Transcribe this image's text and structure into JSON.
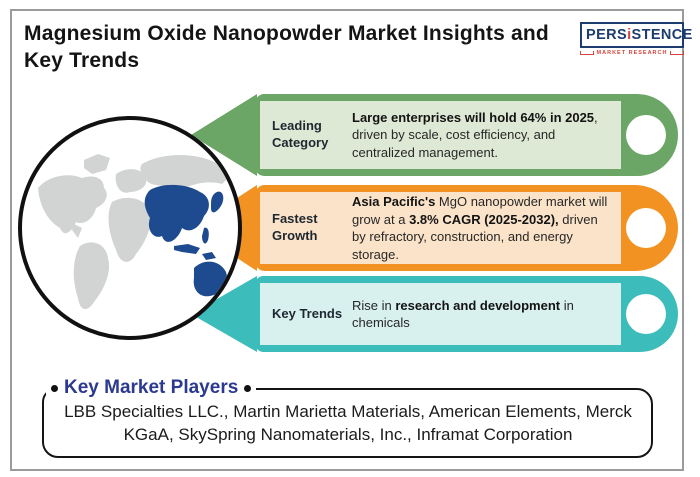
{
  "page": {
    "title": "Magnesium Oxide Nanopowder Market Insights and Key Trends"
  },
  "logo": {
    "part1": "PERS",
    "part2": "i",
    "part3": "STENCE",
    "subtitle": "MARKET RESEARCH",
    "navy": "#1d3d6f",
    "red": "#d6453d"
  },
  "map": {
    "land_color": "#d2d3d3",
    "highlight_color": "#1e4b8f",
    "highlight_region": "asia-pacific"
  },
  "banners": [
    {
      "label": "Leading Category",
      "color": "#6ba666",
      "light": "#dde9d5",
      "segments": [
        {
          "text": "Large enterprises will hold 64% in 2025",
          "bold": true
        },
        {
          "text": ", driven by scale, cost efficiency, and centralized management.",
          "bold": false
        }
      ]
    },
    {
      "label": "Fastest Growth",
      "color": "#f19222",
      "light": "#fbe3c9",
      "segments": [
        {
          "text": "Asia Pacific's",
          "bold": true
        },
        {
          "text": " MgO nanopowder market will grow at a ",
          "bold": false
        },
        {
          "text": "3.8% CAGR (2025-2032),",
          "bold": true
        },
        {
          "text": " driven by refractory, construction, and energy storage.",
          "bold": false
        }
      ]
    },
    {
      "label": "Key Trends",
      "color": "#3cbcba",
      "light": "#d8f0ee",
      "segments": [
        {
          "text": "Rise in ",
          "bold": false
        },
        {
          "text": "research and development",
          "bold": true
        },
        {
          "text": " in chemicals",
          "bold": false
        }
      ]
    }
  ],
  "key_players": {
    "title": "Key Market Players",
    "companies": "LBB Specialties LLC., Martin Marietta Materials, American Elements, Merck KGaA, SkySpring Nanomaterials, Inc., Inframat Corporation"
  }
}
